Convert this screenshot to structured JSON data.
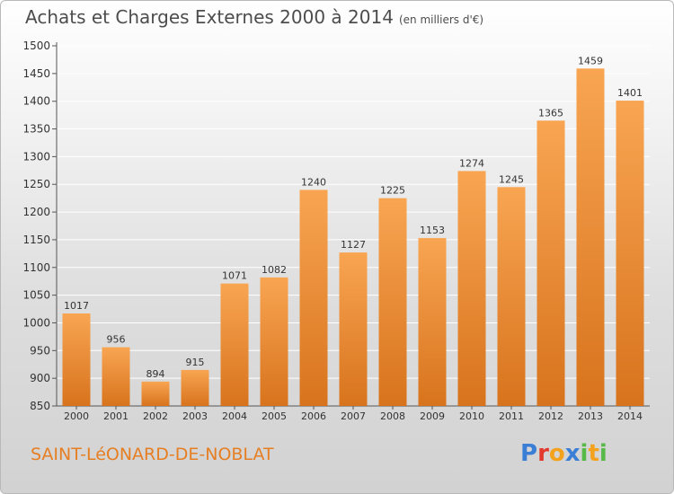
{
  "title": "Achats et Charges Externes 2000 à 2014",
  "unit_note": "(en milliers d'€)",
  "city": "SAINT-LéONARD-DE-NOBLAT",
  "logo": {
    "text": "Proxiti",
    "letters": [
      {
        "ch": "P",
        "color": "#3a7fd5"
      },
      {
        "ch": "r",
        "color": "#e23b2e"
      },
      {
        "ch": "o",
        "color": "#f4a21d"
      },
      {
        "ch": "x",
        "color": "#3a7fd5"
      },
      {
        "ch": "i",
        "color": "#57b947"
      },
      {
        "ch": "t",
        "color": "#f4a21d"
      },
      {
        "ch": "i",
        "color": "#57b947"
      }
    ]
  },
  "colors": {
    "bar_light": "#f8a552",
    "bar_dark": "#d8731d",
    "accent": "#e67e22",
    "grid": "#ffffff"
  },
  "chart_data": {
    "type": "bar",
    "title": "Achats et Charges Externes 2000 à 2014",
    "subtitle": "(en milliers d'€)",
    "xlabel": "",
    "ylabel": "",
    "categories": [
      "2000",
      "2001",
      "2002",
      "2003",
      "2004",
      "2005",
      "2006",
      "2007",
      "2008",
      "2009",
      "2010",
      "2011",
      "2012",
      "2013",
      "2014"
    ],
    "values": [
      1017,
      956,
      894,
      915,
      1071,
      1082,
      1240,
      1127,
      1225,
      1153,
      1274,
      1245,
      1365,
      1459,
      1401
    ],
    "ylim": [
      850,
      1500
    ],
    "yticks": [
      850,
      900,
      950,
      1000,
      1050,
      1100,
      1150,
      1200,
      1250,
      1300,
      1350,
      1400,
      1450,
      1500
    ],
    "grid": true,
    "data_labels": true
  }
}
